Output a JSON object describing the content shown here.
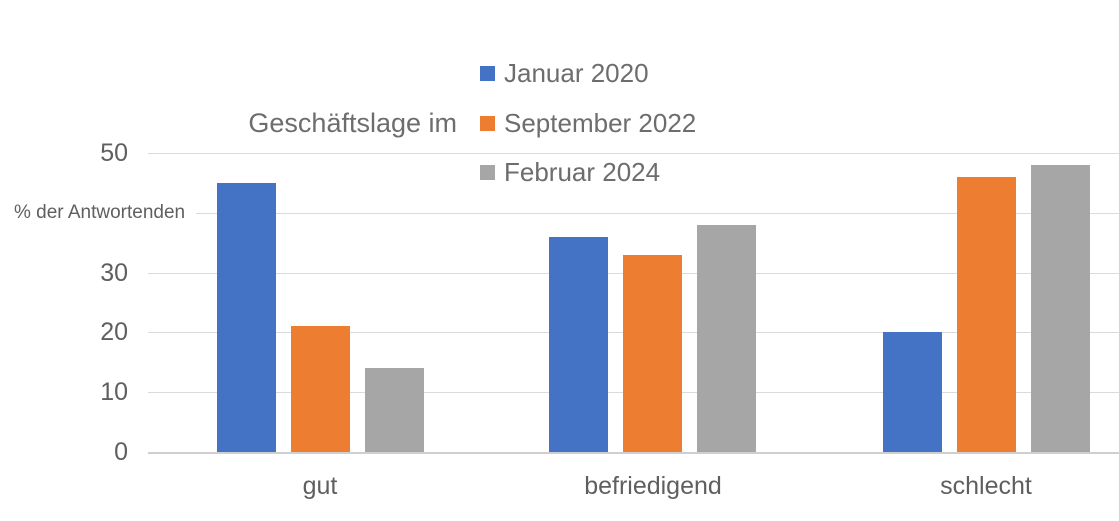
{
  "chart_data": {
    "type": "bar",
    "title": "Geschäftslage im",
    "ylabel": "% der Antwortenden",
    "ylabel_at_value": 40,
    "categories": [
      "gut",
      "befriedigend",
      "schlecht"
    ],
    "series": [
      {
        "name": "Januar 2020",
        "color": "#4472C4",
        "values": [
          45,
          36,
          20
        ]
      },
      {
        "name": "September 2022",
        "color": "#ED7D31",
        "values": [
          21,
          33,
          46
        ]
      },
      {
        "name": "Februar 2024",
        "color": "#A6A6A6",
        "values": [
          14,
          38,
          48
        ]
      }
    ],
    "y_axis": {
      "min": 0,
      "max": 50,
      "ticks": [
        {
          "value": 0,
          "label": "0"
        },
        {
          "value": 10,
          "label": "10"
        },
        {
          "value": 20,
          "label": "20"
        },
        {
          "value": 30,
          "label": "30"
        },
        {
          "value": 40,
          "label": ""
        },
        {
          "value": 50,
          "label": "50"
        }
      ]
    },
    "grid": true,
    "legend_position": "top-right",
    "colors": {
      "gridline": "#DBDBDB",
      "axis_baseline": "#CFCFCF",
      "text": "#5f5f5f"
    }
  }
}
